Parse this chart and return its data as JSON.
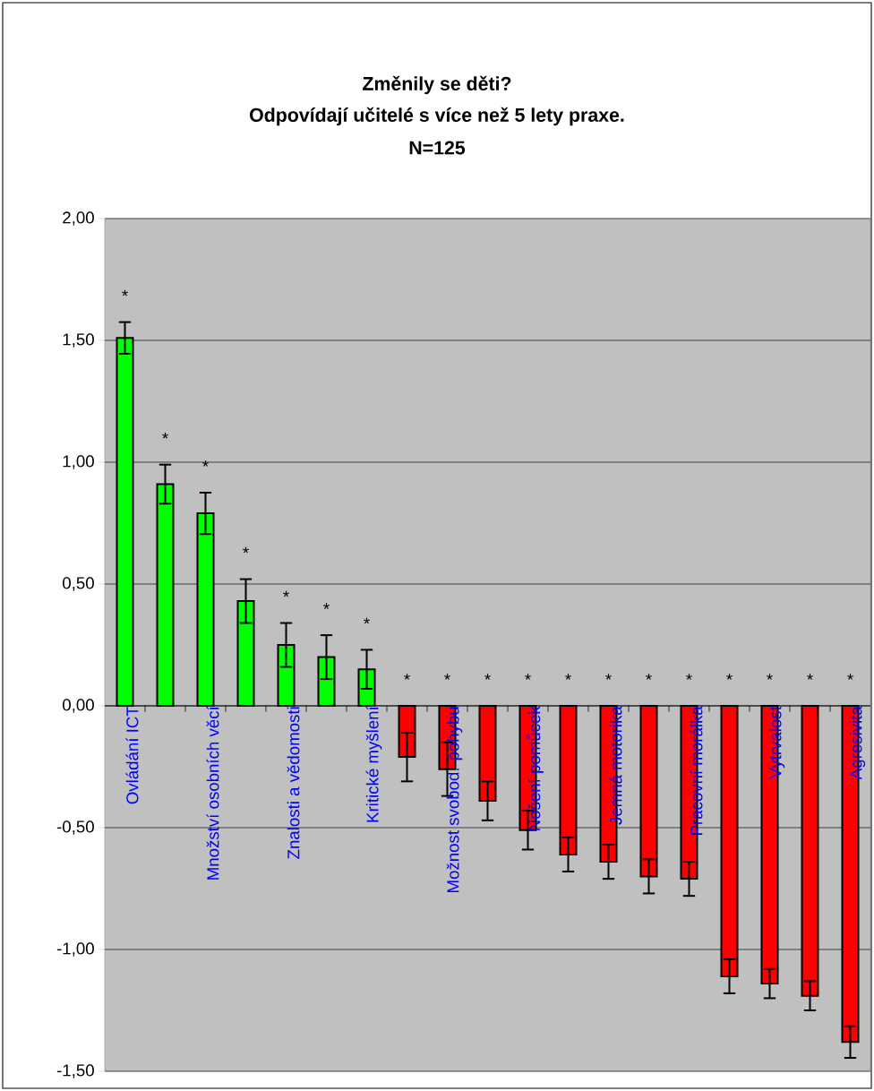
{
  "chart_data": {
    "type": "bar",
    "title": "Změnily se děti?",
    "subtitle": "Odpovídají učitelé s více než 5 lety praxe.",
    "categories": [
      "Ovládání ICT",
      null,
      "Množství osobních věcí",
      null,
      "Znalosti a vědomosti",
      null,
      "Kritické myšlení",
      null,
      "Možnost svobod. pohybu",
      null,
      "Nošení pomůcek",
      null,
      "Jemná motorika",
      null,
      "Pracovní morálka",
      null,
      "Vytrvalost",
      null,
      "Agresivita"
    ],
    "values": [
      1.51,
      0.91,
      0.79,
      0.43,
      0.25,
      0.2,
      0.15,
      -0.21,
      -0.26,
      -0.39,
      -0.51,
      -0.61,
      -0.64,
      -0.7,
      -0.71,
      -1.11,
      -1.14,
      -1.19,
      -1.38
    ],
    "errors": [
      0.065,
      0.08,
      0.085,
      0.09,
      0.09,
      0.09,
      0.08,
      0.1,
      0.11,
      0.08,
      0.08,
      0.07,
      0.07,
      0.07,
      0.07,
      0.07,
      0.06,
      0.06,
      0.065
    ],
    "colors": [
      "#00ff00",
      "#00ff00",
      "#00ff00",
      "#00ff00",
      "#00ff00",
      "#00ff00",
      "#00ff00",
      "#ff0000",
      "#ff0000",
      "#ff0000",
      "#ff0000",
      "#ff0000",
      "#ff0000",
      "#ff0000",
      "#ff0000",
      "#ff0000",
      "#ff0000",
      "#ff0000",
      "#ff0000"
    ],
    "ylim": [
      -1.5,
      2
    ],
    "yticks": [
      {
        "value": -1.5,
        "label": "-1,50"
      },
      {
        "value": -1,
        "label": "-1,00"
      },
      {
        "value": -0.5,
        "label": "-0,50"
      },
      {
        "value": 0,
        "label": "0,00"
      },
      {
        "value": 0.5,
        "label": "0,50"
      },
      {
        "value": 1,
        "label": "1,00"
      },
      {
        "value": 1.5,
        "label": "1,50"
      },
      {
        "value": 2,
        "label": "2,00"
      }
    ],
    "grid": "y",
    "annotations": [
      "N=125",
      "*",
      "*",
      "*",
      "*",
      "*",
      "*",
      "*",
      "*",
      "*",
      "*",
      "*",
      "*",
      "*",
      "*",
      "*",
      "*",
      "*",
      "*",
      "*"
    ]
  }
}
